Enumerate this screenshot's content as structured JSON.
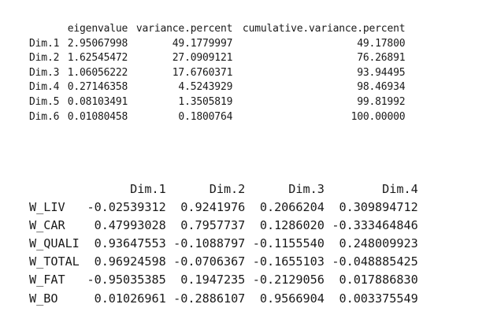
{
  "eigen_table": {
    "columns": [
      "eigenvalue",
      "variance.percent",
      "cumulative.variance.percent"
    ],
    "rows": [
      {
        "name": "Dim.1",
        "values": [
          "2.95067998",
          "49.1779997",
          "49.17800"
        ]
      },
      {
        "name": "Dim.2",
        "values": [
          "1.62545472",
          "27.0909121",
          "76.26891"
        ]
      },
      {
        "name": "Dim.3",
        "values": [
          "1.06056222",
          "17.6760371",
          "93.94495"
        ]
      },
      {
        "name": "Dim.4",
        "values": [
          "0.27146358",
          "4.5243929",
          "98.46934"
        ]
      },
      {
        "name": "Dim.5",
        "values": [
          "0.08103491",
          "1.3505819",
          "99.81992"
        ]
      },
      {
        "name": "Dim.6",
        "values": [
          "0.01080458",
          "0.1800764",
          "100.00000"
        ]
      }
    ]
  },
  "loadings_table": {
    "columns": [
      "Dim.1",
      "Dim.2",
      "Dim.3",
      "Dim.4"
    ],
    "rows": [
      {
        "name": "W_LIV",
        "values": [
          "-0.02539312",
          "0.9241976",
          "0.2066204",
          "0.309894712"
        ]
      },
      {
        "name": "W_CAR",
        "values": [
          "0.47993028",
          "0.7957737",
          "0.1286020",
          "-0.333464846"
        ]
      },
      {
        "name": "W_QUALI",
        "values": [
          "0.93647553",
          "-0.1088797",
          "-0.1155540",
          "0.248009923"
        ]
      },
      {
        "name": "W_TOTAL",
        "values": [
          "0.96924598",
          "-0.0706367",
          "-0.1655103",
          "-0.048885425"
        ]
      },
      {
        "name": "W_FAT",
        "values": [
          "-0.95035385",
          "0.1947235",
          "-0.2129056",
          "0.017886830"
        ]
      },
      {
        "name": "W_BO",
        "values": [
          "0.01026961",
          "-0.2886107",
          "0.9566904",
          "0.003375549"
        ]
      }
    ]
  }
}
